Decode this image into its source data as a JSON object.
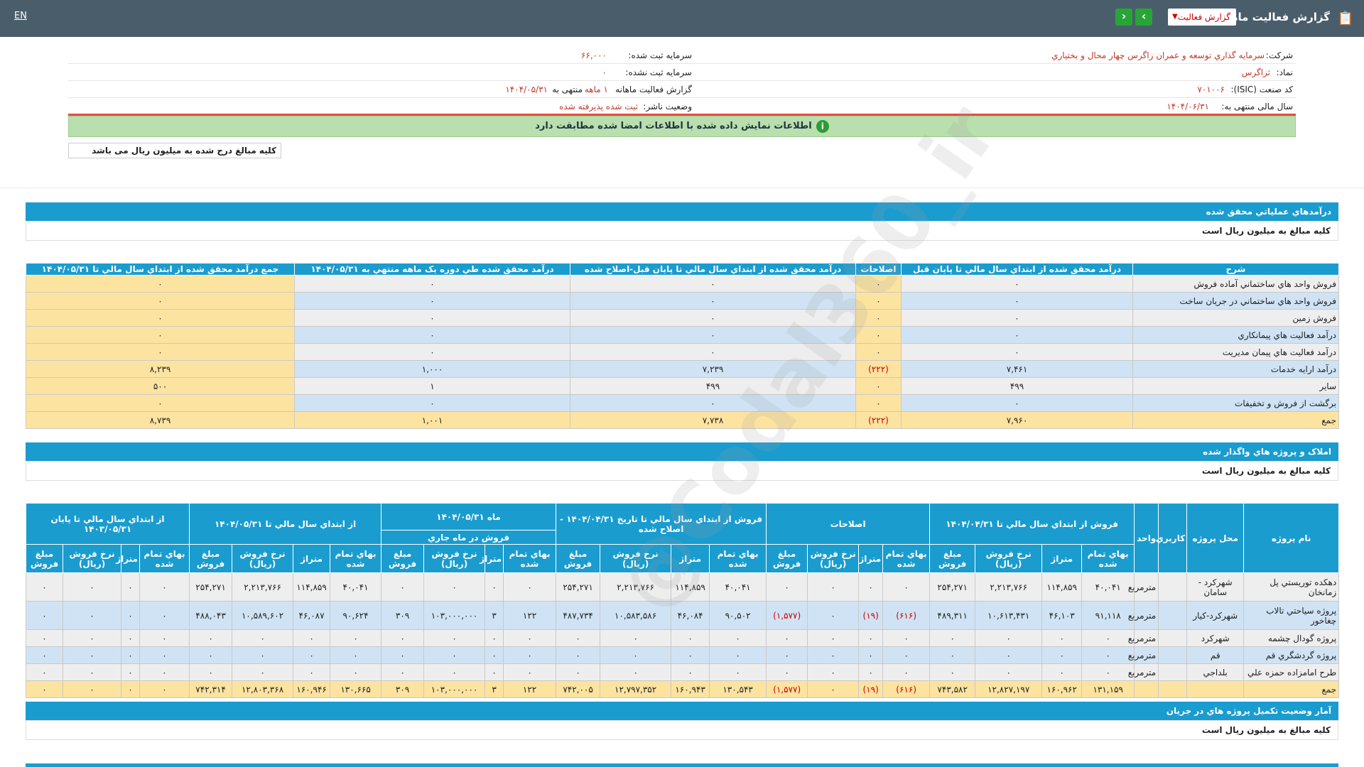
{
  "header": {
    "title": "گزارش فعالیت ماهانه",
    "select_value": "گزارش فعالیت",
    "lang": "EN"
  },
  "info": {
    "company_label": "شرکت:",
    "company": "سرمايه گذاري توسعه و عمران زاگرس چهار محال و بختياري",
    "capital_label": "سرمایه ثبت شده:",
    "capital": "۶۶,۰۰۰",
    "symbol_label": "نماد:",
    "symbol": "ثزاگرس",
    "unreg_label": "سرمایه ثبت نشده:",
    "unreg": "۰",
    "isic_label": "کد صنعت (ISIC):",
    "isic": "۷۰۱۰۰۶",
    "report_label": "گزارش فعالیت ماهانه",
    "report_val": "۱ ماهه",
    "report_end": "منتهی به",
    "report_date": "۱۴۰۴/۰۵/۳۱",
    "fy_label": "سال مالی منتهی به:",
    "fy": "۱۴۰۴/۰۶/۳۱",
    "status_label": "وضعیت ناشر:",
    "status": "ثبت شده پذيرفته شده"
  },
  "notice": "اطلاعات نمایش داده شده با اطلاعات امضا شده مطابقت دارد",
  "amount_note": "کلیه مبالغ درج شده به میلیون ریال می باشد",
  "watermark": "@Codal360_ir",
  "s1": {
    "title": "درآمدهاي عملياتي محقق شده",
    "note": "كليه مبالغ به ميليون ريال است"
  },
  "t1": {
    "headers": [
      "شرح",
      "درآمد محقق شده از ابتداي سال مالي تا پايان قبل",
      "اصلاحات",
      "درآمد محقق شده از ابتداي سال مالي تا پايان قبل-اصلاح شده",
      "درآمد محقق شده طي دوره يک ماهه منتهي به ۱۴۰۴/۰۵/۳۱",
      "جمع درآمد محقق شده از ابتداي سال مالي تا ۱۴۰۴/۰۵/۳۱"
    ],
    "rows": [
      [
        "فروش واحد هاي ساختماني آماده فروش",
        "۰",
        "۰",
        "۰",
        "۰",
        "۰"
      ],
      [
        "فروش واحد هاي ساختماني در جريان ساخت",
        "۰",
        "۰",
        "۰",
        "۰",
        "۰"
      ],
      [
        "فروش زمين",
        "۰",
        "۰",
        "۰",
        "۰",
        "۰"
      ],
      [
        "درآمد فعاليت هاي پيمانكاري",
        "۰",
        "۰",
        "۰",
        "۰",
        "۰"
      ],
      [
        "درآمد فعاليت هاي پيمان مديريت",
        "۰",
        "۰",
        "۰",
        "۰",
        "۰"
      ],
      [
        "درآمد ارايه خدمات",
        "۷,۴۶۱",
        "(۲۲۲)",
        "۷,۲۳۹",
        "۱,۰۰۰",
        "۸,۲۳۹"
      ],
      [
        "ساير",
        "۴۹۹",
        "۰",
        "۴۹۹",
        "۱",
        "۵۰۰"
      ],
      [
        "برگشت از فروش و تخفيفات",
        "۰",
        "۰",
        "۰",
        "۰",
        "۰"
      ],
      [
        "جمع",
        "۷,۹۶۰",
        "(۲۲۲)",
        "۷,۷۳۸",
        "۱,۰۰۱",
        "۸,۷۳۹"
      ]
    ]
  },
  "s2": {
    "title": "املاک و پروژه هاي واگذار شده",
    "note": "كليه مبالغ به ميليون ريال است"
  },
  "t2": {
    "h_name": "نام پروژه",
    "h_loc": "محل پروژه",
    "h_use": "کاربري",
    "h_unit": "واحد",
    "g1": "فروش از ابتداي سال مالي تا ۱۴۰۴/۰۴/۳۱",
    "g2": "اصلاحات",
    "g3": "فروش از ابتداي سال مالي تا تاريخ ۱۴۰۴/۰۴/۳۱ - اصلاح شده",
    "g4": "ماه ۱۴۰۴/۰۵/۳۱",
    "g4sub": "فروش در ماه جاري",
    "g5": "از ابتداي سال مالي تا ۱۴۰۴/۰۵/۳۱",
    "g6": "از ابتداي سال مالي تا پايان ۱۴۰۳/۰۵/۳۱",
    "sub": [
      "بهاي تمام شده",
      "متراژ",
      "نرخ فروش (ريال)",
      "مبلغ فروش"
    ],
    "rows": [
      [
        "دهكده توريستي پل زمانخان",
        "شهركرد - سامان",
        "",
        "مترمربع",
        "۴۰,۰۴۱",
        "۱۱۴,۸۵۹",
        "۲,۲۱۳,۷۶۶",
        "۲۵۴,۲۷۱",
        "۰",
        "۰",
        "۰",
        "۰",
        "۴۰,۰۴۱",
        "۱۱۴,۸۵۹",
        "۲,۲۱۳,۷۶۶",
        "۲۵۴,۲۷۱",
        "۰",
        "۰",
        "۰",
        "۰",
        "۴۰,۰۴۱",
        "۱۱۴,۸۵۹",
        "۲,۲۱۳,۷۶۶",
        "۲۵۴,۲۷۱",
        "۰",
        "۰",
        "۰",
        "۰"
      ],
      [
        "پروژه سياحتي تالاب چغاخور",
        "شهركرد-كيار",
        "",
        "مترمربع",
        "۹۱,۱۱۸",
        "۴۶,۱۰۳",
        "۱۰,۶۱۳,۴۳۱",
        "۴۸۹,۳۱۱",
        "(۶۱۶)",
        "(۱۹)",
        "۰",
        "(۱,۵۷۷)",
        "۹۰,۵۰۲",
        "۴۶,۰۸۴",
        "۱۰,۵۸۳,۵۸۶",
        "۴۸۷,۷۳۴",
        "۱۲۲",
        "۳",
        "۱۰۳,۰۰۰,۰۰۰",
        "۳۰۹",
        "۹۰,۶۲۴",
        "۴۶,۰۸۷",
        "۱۰,۵۸۹,۶۰۲",
        "۴۸۸,۰۴۳",
        "۰",
        "۰",
        "۰",
        "۰"
      ],
      [
        "پروژه گودال چشمه",
        "شهركرد",
        "",
        "مترمربع",
        "۰",
        "۰",
        "۰",
        "۰",
        "۰",
        "۰",
        "۰",
        "۰",
        "۰",
        "۰",
        "۰",
        "۰",
        "۰",
        "۰",
        "۰",
        "۰",
        "۰",
        "۰",
        "۰",
        "۰",
        "۰",
        "۰",
        "۰",
        "۰"
      ],
      [
        "پروژه گردشگري قم",
        "قم",
        "",
        "مترمربع",
        "۰",
        "۰",
        "۰",
        "۰",
        "۰",
        "۰",
        "۰",
        "۰",
        "۰",
        "۰",
        "۰",
        "۰",
        "۰",
        "۰",
        "۰",
        "۰",
        "۰",
        "۰",
        "۰",
        "۰",
        "۰",
        "۰",
        "۰",
        "۰"
      ],
      [
        "طرح امامزاده حمزه علي",
        "بلداجي",
        "",
        "مترمربع",
        "۰",
        "۰",
        "۰",
        "۰",
        "۰",
        "۰",
        "۰",
        "۰",
        "۰",
        "۰",
        "۰",
        "۰",
        "۰",
        "۰",
        "۰",
        "۰",
        "۰",
        "۰",
        "۰",
        "۰",
        "۰",
        "۰",
        "۰",
        "۰"
      ],
      [
        "جمع",
        "",
        "",
        "",
        "۱۳۱,۱۵۹",
        "۱۶۰,۹۶۲",
        "۱۲,۸۲۷,۱۹۷",
        "۷۴۳,۵۸۲",
        "(۶۱۶)",
        "(۱۹)",
        "۰",
        "(۱,۵۷۷)",
        "۱۳۰,۵۴۳",
        "۱۶۰,۹۴۳",
        "۱۲,۷۹۷,۳۵۲",
        "۷۴۲,۰۰۵",
        "۱۲۲",
        "۳",
        "۱۰۳,۰۰۰,۰۰۰",
        "۳۰۹",
        "۱۳۰,۶۶۵",
        "۱۶۰,۹۴۶",
        "۱۲,۸۰۳,۳۶۸",
        "۷۴۲,۳۱۴",
        "۰",
        "۰",
        "۰",
        "۰"
      ]
    ]
  },
  "s3": {
    "title": "آمار وضعيت تكميل پروژه هاي در جريان",
    "note": "كليه مبالغ به ميليون ريال است"
  }
}
